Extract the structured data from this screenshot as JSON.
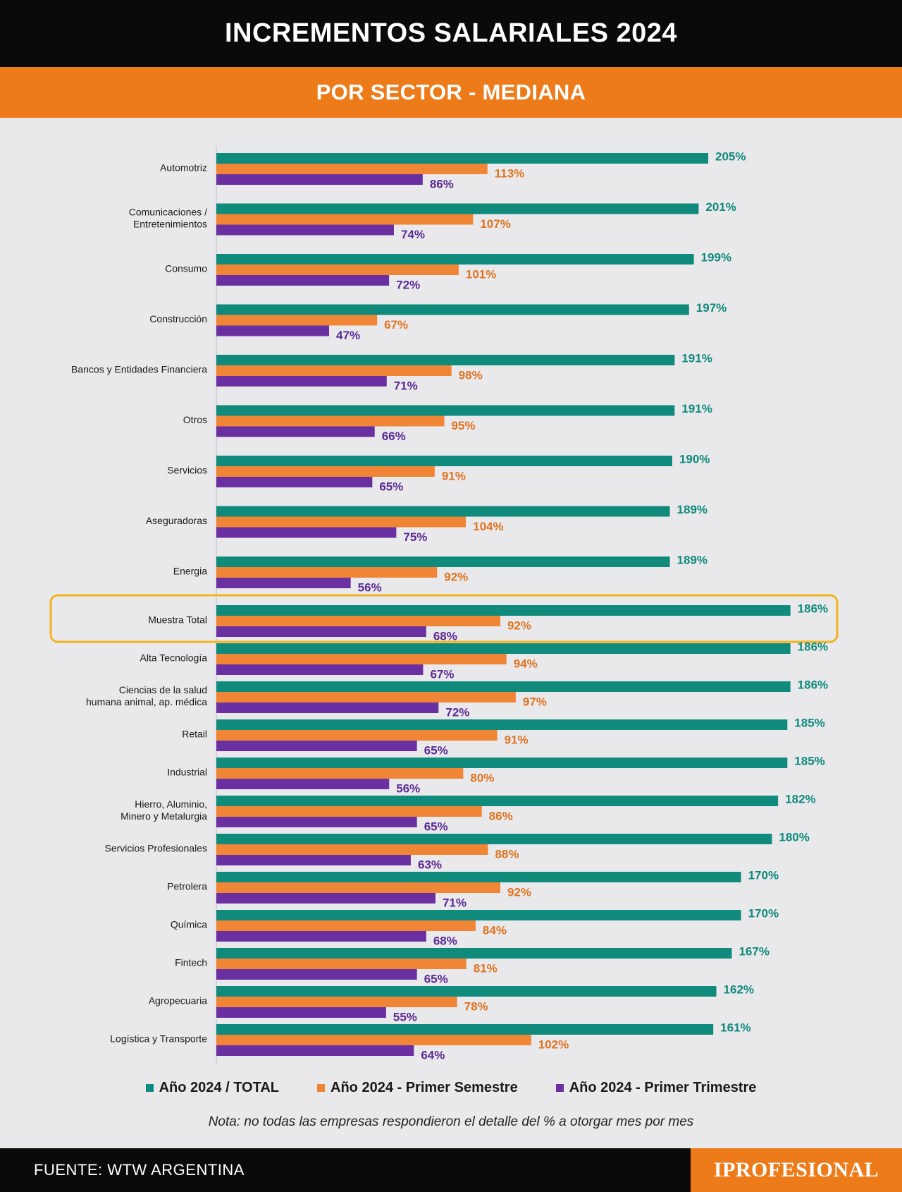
{
  "header": {
    "title": "INCREMENTOS SALARIALES 2024",
    "subtitle": "POR SECTOR - MEDIANA"
  },
  "colors": {
    "total": "#0f8a7b",
    "semestre": "#f08535",
    "trimestre": "#6a2fa0",
    "highlight": "#f2b31d",
    "header_bg": "#0a0a0a",
    "accent": "#ee7b1a",
    "background": "#e9e9ec"
  },
  "chart_data": {
    "type": "bar",
    "orientation": "horizontal",
    "title": "INCREMENTOS SALARIALES 2024",
    "subtitle": "POR SECTOR - MEDIANA",
    "value_suffix": "%",
    "highlighted_category": "Muestra Total",
    "legend_position": "bottom",
    "grid": false,
    "categories": [
      "Automotriz",
      "Comunicaciones / Entretenimientos",
      "Consumo",
      "Construcción",
      "Bancos y Entidades Financiera",
      "Otros",
      "Servicios",
      "Aseguradoras",
      "Energia",
      "Muestra Total",
      "Alta Tecnología",
      "Ciencias de la salud humana animal, ap. médica",
      "Retail",
      "Industrial",
      "Hierro, Aluminio, Minero y Metalurgia",
      "Servicios Profesionales",
      "Petrolera",
      "Química",
      "Fintech",
      "Agropecuaria",
      "Logística y Transporte"
    ],
    "series": [
      {
        "name": "Año 2024 / TOTAL",
        "values": [
          205,
          201,
          199,
          197,
          191,
          191,
          190,
          189,
          189,
          186,
          186,
          186,
          185,
          185,
          182,
          180,
          170,
          170,
          167,
          162,
          161
        ]
      },
      {
        "name": "Año 2024 - Primer Semestre",
        "values": [
          113,
          107,
          101,
          67,
          98,
          95,
          91,
          104,
          92,
          92,
          94,
          97,
          91,
          80,
          86,
          88,
          92,
          84,
          81,
          78,
          102
        ]
      },
      {
        "name": "Año 2024 - Primer Trimestre",
        "values": [
          86,
          74,
          72,
          47,
          71,
          66,
          65,
          75,
          56,
          68,
          67,
          72,
          65,
          56,
          65,
          63,
          71,
          68,
          65,
          55,
          64
        ]
      }
    ]
  },
  "legend": {
    "total": "Año 2024 / TOTAL",
    "semestre": "Año 2024 - Primer Semestre",
    "trimestre": "Año 2024 - Primer Trimestre"
  },
  "note": "Nota: no todas las empresas respondieron el detalle del % a otorgar mes por mes",
  "footer": {
    "source": "FUENTE: WTW ARGENTINA",
    "logo": "IPROFESIONAL"
  }
}
